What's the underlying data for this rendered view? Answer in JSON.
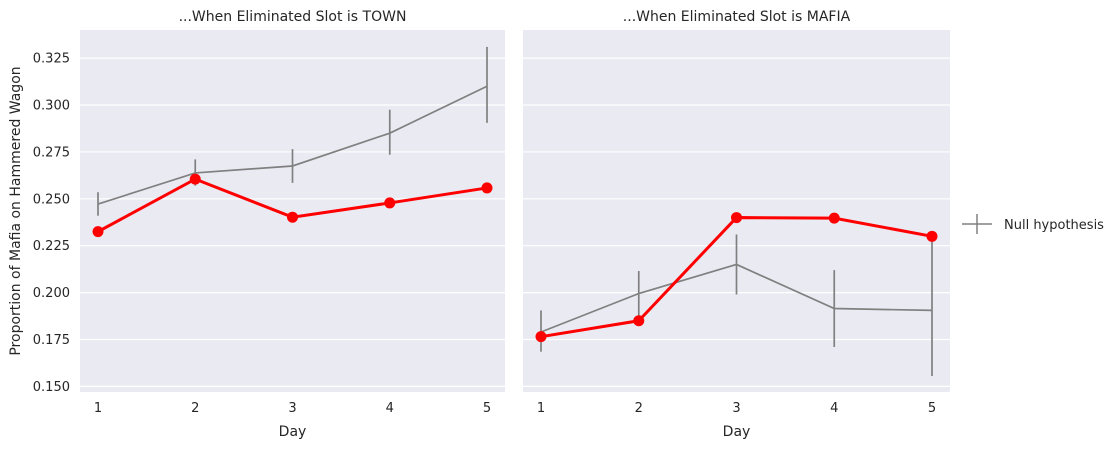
{
  "chart_data": [
    {
      "type": "line",
      "title": "...When Eliminated Slot is TOWN",
      "xlabel": "Day",
      "ylabel": "Proportion of Mafia on Hammered Wagon",
      "x": [
        1,
        2,
        3,
        4,
        5
      ],
      "ylim": [
        0.147,
        0.34
      ],
      "yticks": [
        0.15,
        0.175,
        0.2,
        0.225,
        0.25,
        0.275,
        0.3,
        0.325
      ],
      "ytick_labels": [
        "0.150",
        "0.175",
        "0.200",
        "0.225",
        "0.250",
        "0.275",
        "0.300",
        "0.325"
      ],
      "grid": true,
      "series": [
        {
          "color": "#ff0000",
          "values": [
            0.2325,
            0.2605,
            0.2402,
            0.2478,
            0.2558
          ]
        },
        {
          "name": "Null hypothesis",
          "color": "#808080",
          "values": [
            0.2472,
            0.2638,
            0.2675,
            0.285,
            0.31
          ],
          "errors": [
            [
              0.241,
              0.2535
            ],
            [
              0.257,
              0.271
            ],
            [
              0.2585,
              0.2765
            ],
            [
              0.2735,
              0.2975
            ],
            [
              0.2905,
              0.331
            ]
          ]
        }
      ]
    },
    {
      "type": "line",
      "title": "...When Eliminated Slot is MAFIA",
      "xlabel": "Day",
      "ylabel": "",
      "x": [
        1,
        2,
        3,
        4,
        5
      ],
      "ylim": [
        0.147,
        0.34
      ],
      "grid": true,
      "series": [
        {
          "color": "#ff0000",
          "values": [
            0.1765,
            0.185,
            0.24,
            0.2397,
            0.23
          ]
        },
        {
          "name": "Null hypothesis",
          "color": "#808080",
          "values": [
            0.179,
            0.1995,
            0.215,
            0.1915,
            0.1905
          ],
          "errors": [
            [
              0.1685,
              0.1905
            ],
            [
              0.1875,
              0.2115
            ],
            [
              0.199,
              0.231
            ],
            [
              0.171,
              0.212
            ],
            [
              0.1555,
              0.2305
            ]
          ]
        }
      ]
    }
  ],
  "legend": {
    "label": "Null hypothesis",
    "position": "right"
  }
}
